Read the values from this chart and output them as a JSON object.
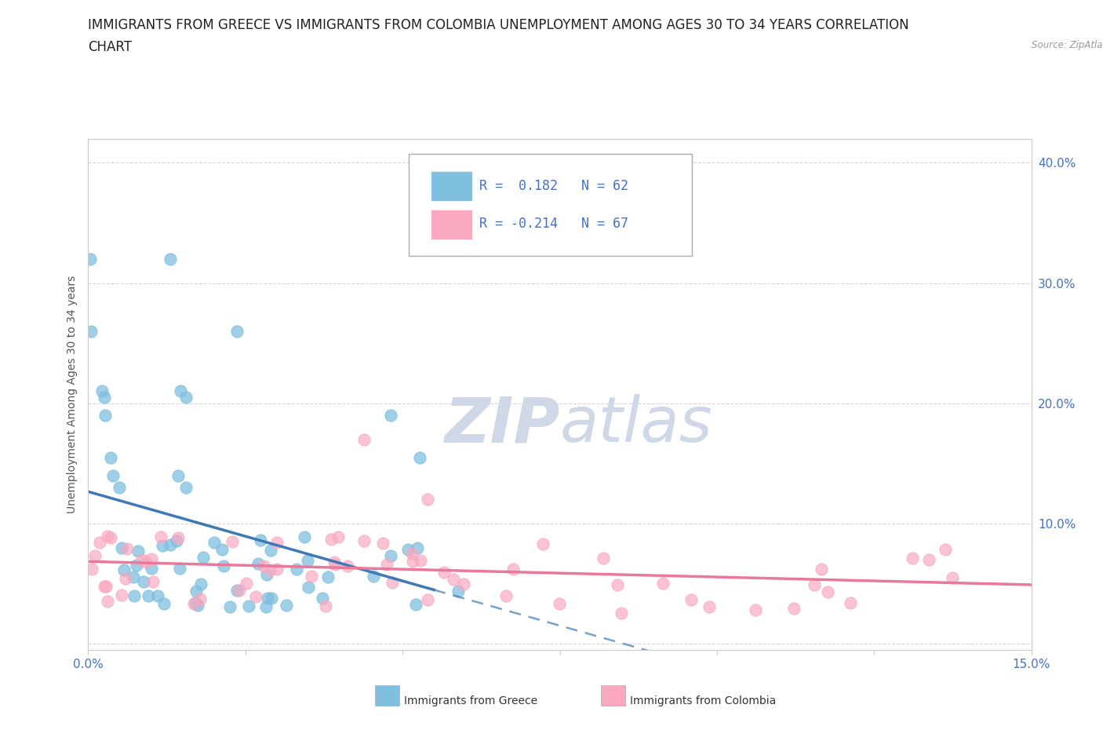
{
  "title_line1": "IMMIGRANTS FROM GREECE VS IMMIGRANTS FROM COLOMBIA UNEMPLOYMENT AMONG AGES 30 TO 34 YEARS CORRELATION",
  "title_line2": "CHART",
  "source": "Source: ZipAtlas.com",
  "ylabel": "Unemployment Among Ages 30 to 34 years",
  "xlim": [
    0.0,
    0.15
  ],
  "ylim": [
    -0.005,
    0.42
  ],
  "xtick_positions": [
    0.0,
    0.025,
    0.05,
    0.075,
    0.1,
    0.125,
    0.15
  ],
  "ytick_positions": [
    0.0,
    0.1,
    0.2,
    0.3,
    0.4
  ],
  "ytick_labels_right": [
    "",
    "10.0%",
    "20.0%",
    "30.0%",
    "40.0%"
  ],
  "xtick_labels": [
    "0.0%",
    "",
    "",
    "",
    "",
    "",
    "15.0%"
  ],
  "greece_color": "#7fbfdf",
  "colombia_color": "#f9a8bf",
  "greece_line_color": "#3d7ab5",
  "colombia_line_color": "#e8799a",
  "greece_R": 0.182,
  "greece_N": 62,
  "colombia_R": -0.214,
  "colombia_N": 67,
  "background_color": "#ffffff",
  "grid_color": "#cccccc",
  "title_fontsize": 12,
  "axis_label_fontsize": 10,
  "tick_fontsize": 11,
  "legend_fontsize": 12,
  "tick_color": "#4472c4",
  "watermark_color": "#d0d8e8",
  "legend_label_greece": "Immigrants from Greece",
  "legend_label_colombia": "Immigrants from Colombia"
}
